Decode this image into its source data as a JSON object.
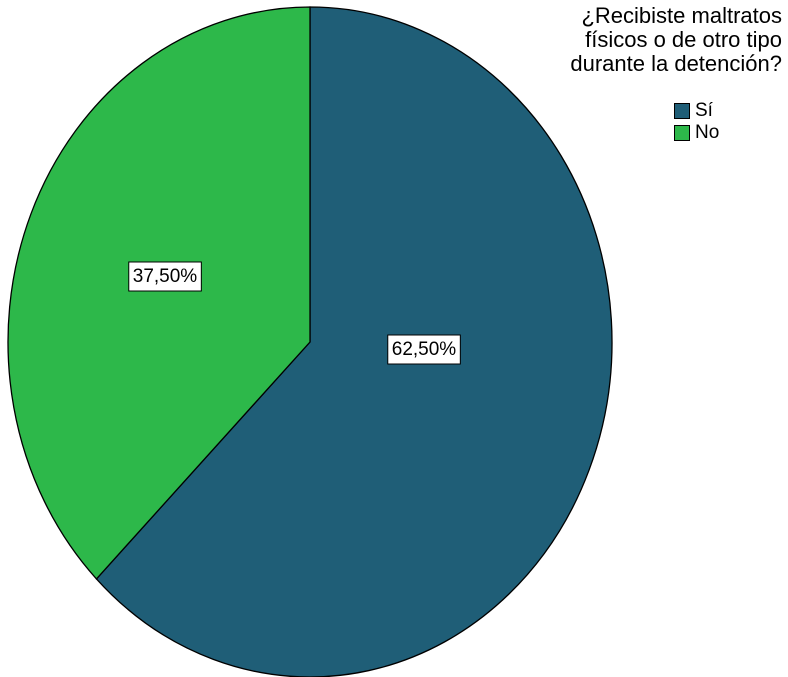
{
  "chart_data": {
    "type": "pie",
    "title": "",
    "legend_title_lines": [
      "¿Recibiste maltratos",
      "físicos o de otro tipo",
      "durante la detención?"
    ],
    "legend_position": "top-right",
    "slices": [
      {
        "label": "Sí",
        "value": 62.5,
        "value_label": "62,50%",
        "color": "#1f5e77"
      },
      {
        "label": "No",
        "value": 37.5,
        "value_label": "37,50%",
        "color": "#2db84a"
      }
    ]
  }
}
